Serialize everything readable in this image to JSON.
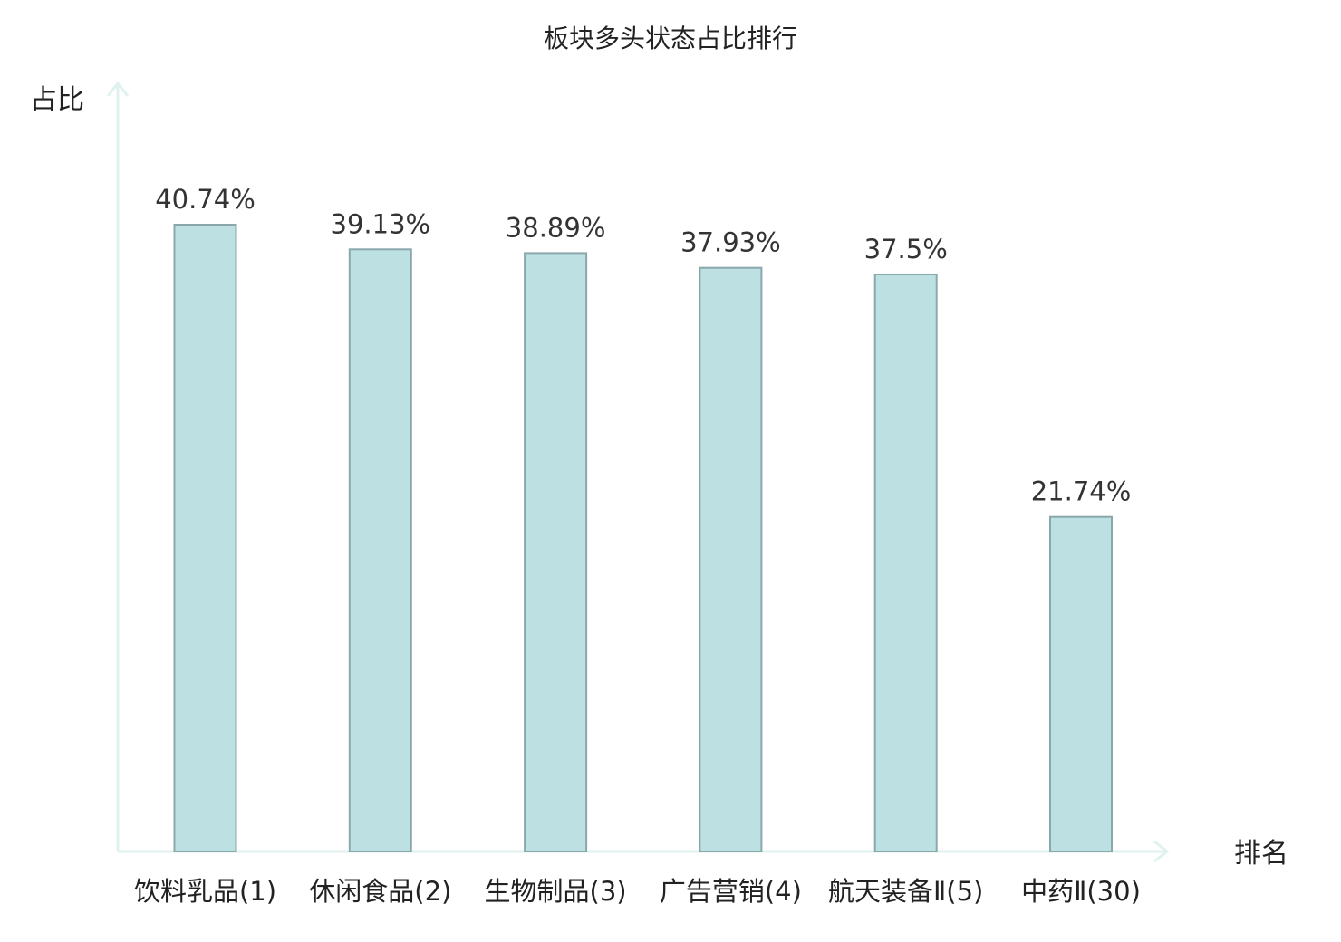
{
  "chart_data": {
    "type": "bar",
    "title": "板块多头状态占比排行",
    "ylabel": "占比",
    "xlabel": "排名",
    "ylim": [
      0,
      45
    ],
    "grid": false,
    "categories": [
      "饮料乳品(1)",
      "休闲食品(2)",
      "生物制品(3)",
      "广告营销(4)",
      "航天装备Ⅱ(5)",
      "中药Ⅱ(30)"
    ],
    "values": [
      40.74,
      39.13,
      38.89,
      37.93,
      37.5,
      21.74
    ],
    "value_labels": [
      "40.74%",
      "39.13%",
      "38.89%",
      "37.93%",
      "37.5%",
      "21.74%"
    ],
    "highlight_index": 5,
    "colors": {
      "bar_fill": "#bde0e3",
      "bar_stroke": "#8aa8aa",
      "axis": "#dff2ef",
      "highlight_text": "#e0201b",
      "text": "#222222"
    }
  }
}
